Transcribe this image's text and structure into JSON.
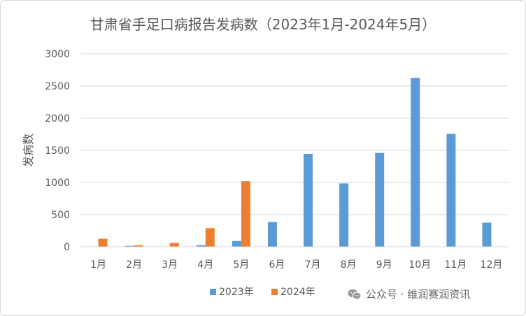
{
  "chart_data": {
    "type": "bar",
    "title": "甘肃省手足口病报告发病数（2023年1月-2024年5月）",
    "ylabel": "发病数",
    "xlabel": "",
    "ylim": [
      0,
      3000
    ],
    "yticks": [
      0,
      500,
      1000,
      1500,
      2000,
      2500,
      3000
    ],
    "ytick_labels": [
      "0",
      "500",
      "1000",
      "1500",
      "2000",
      "2500",
      "3000"
    ],
    "categories": [
      "1月",
      "2月",
      "3月",
      "4月",
      "5月",
      "6月",
      "7月",
      "8月",
      "9月",
      "10月",
      "11月",
      "12月"
    ],
    "series": [
      {
        "name": "2023年",
        "color": "#5b9bd5",
        "values": [
          0,
          15,
          5,
          25,
          90,
          385,
          1445,
          985,
          1460,
          2625,
          1755,
          375
        ]
      },
      {
        "name": "2024年",
        "color": "#ed7d31",
        "values": [
          125,
          25,
          60,
          290,
          1020,
          null,
          null,
          null,
          null,
          null,
          null,
          null
        ]
      }
    ],
    "grid": true,
    "legend_position": "bottom"
  },
  "watermark": {
    "text": "公众号 · 维润赛润资讯",
    "icon": "wechat-icon"
  }
}
